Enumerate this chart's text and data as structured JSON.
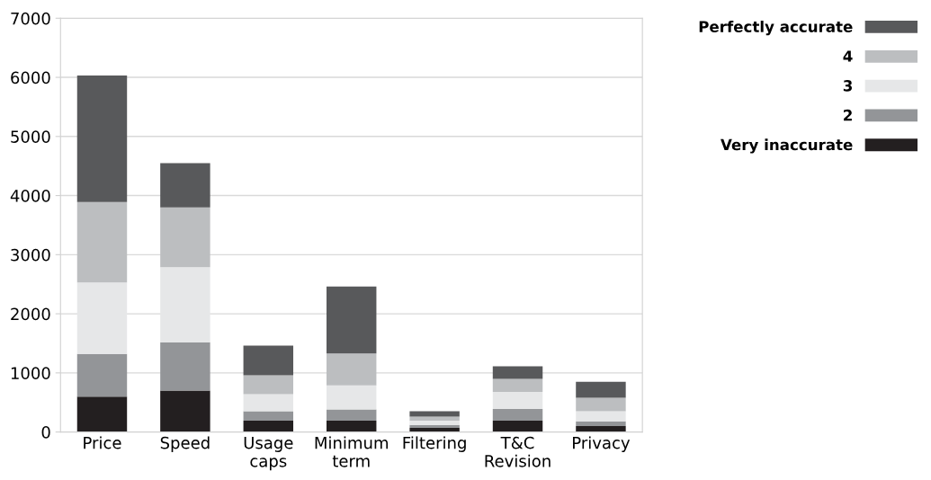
{
  "chart_data": {
    "type": "bar",
    "stacked": true,
    "categories": [
      "Price",
      "Speed",
      "Usage\ncaps",
      "Minimum\nterm",
      "Filtering",
      "T&C\nRevision",
      "Privacy"
    ],
    "series": [
      {
        "name": "Very inaccurate",
        "color": "#231f20",
        "values": [
          600,
          700,
          190,
          190,
          70,
          190,
          100
        ]
      },
      {
        "name": "2",
        "color": "#939598",
        "values": [
          720,
          820,
          160,
          190,
          50,
          200,
          80
        ]
      },
      {
        "name": "3",
        "color": "#e6e7e8",
        "values": [
          1210,
          1270,
          290,
          410,
          70,
          290,
          170
        ]
      },
      {
        "name": "4",
        "color": "#bcbec0",
        "values": [
          1360,
          1010,
          320,
          540,
          70,
          220,
          230
        ]
      },
      {
        "name": "Perfectly accurate",
        "color": "#58595b",
        "values": [
          2140,
          750,
          500,
          1130,
          90,
          210,
          270
        ]
      }
    ],
    "ylim": [
      0,
      7000
    ],
    "yticks": [
      0,
      1000,
      2000,
      3000,
      4000,
      5000,
      6000,
      7000
    ],
    "grid": "y",
    "legend": "top right"
  }
}
